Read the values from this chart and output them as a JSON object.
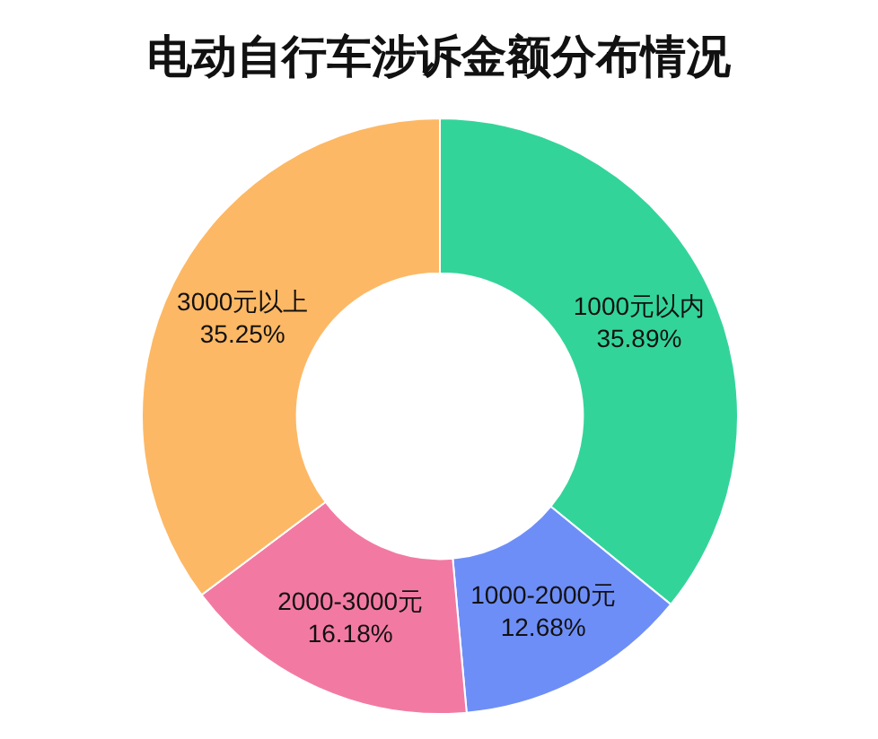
{
  "chart_data": {
    "type": "donut",
    "title": "电动自行车涉诉金额分布情况",
    "categories": [
      "1000元以内",
      "1000-2000元",
      "2000-3000元",
      "3000元以上"
    ],
    "values": [
      35.89,
      12.68,
      16.18,
      35.25
    ],
    "colors": [
      "#33d49a",
      "#6e8ef7",
      "#f27aa2",
      "#fdb865"
    ],
    "value_labels": [
      "35.89%",
      "12.68%",
      "16.18%",
      "35.25%"
    ]
  }
}
